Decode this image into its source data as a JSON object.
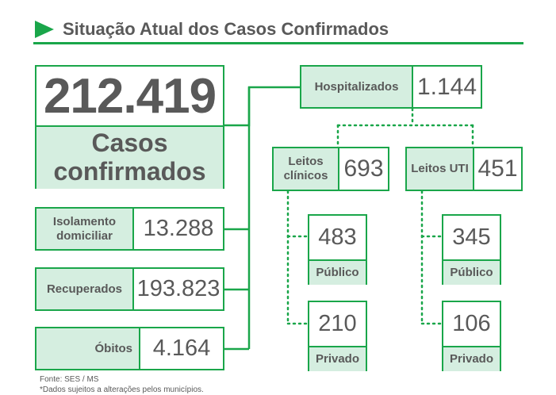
{
  "header": {
    "title": "Situação Atual dos Casos Confirmados"
  },
  "total": {
    "value": "212.419",
    "label": "Casos confirmados"
  },
  "left_items": [
    {
      "label": "Isolamento domiciliar",
      "value": "13.288"
    },
    {
      "label": "Recuperados",
      "value": "193.823"
    },
    {
      "label": "Óbitos",
      "value": "4.164"
    }
  ],
  "hospitalizados": {
    "label": "Hospitalizados",
    "value": "1.144"
  },
  "leitos_clinicos": {
    "label": "Leitos clínicos",
    "value": "693",
    "publico": {
      "value": "483",
      "label": "Público"
    },
    "privado": {
      "value": "210",
      "label": "Privado"
    }
  },
  "leitos_uti": {
    "label": "Leitos UTI",
    "value": "451",
    "publico": {
      "value": "345",
      "label": "Público"
    },
    "privado": {
      "value": "106",
      "label": "Privado"
    }
  },
  "footer": {
    "source": "Fonte: SES / MS",
    "note": "*Dados sujeitos a alterações pelos municípios."
  },
  "colors": {
    "accent": "#1aa64a",
    "fill": "#d5eee0",
    "text": "#595959"
  }
}
